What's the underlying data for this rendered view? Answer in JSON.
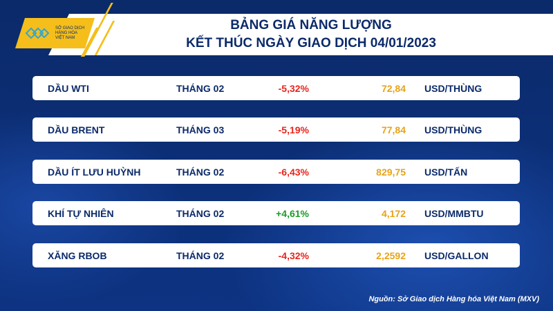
{
  "logo": {
    "text": [
      "SỞ GIAO DỊCH",
      "HÀNG HÓA",
      "VIỆT NAM"
    ]
  },
  "header": {
    "title_line1": "BẢNG GIÁ NĂNG LƯỢNG",
    "title_line2": "KẾT THÚC NGÀY GIAO DỊCH 04/01/2023"
  },
  "rows": [
    {
      "name": "DẦU WTI",
      "month": "THÁNG 02",
      "change": "-5,32%",
      "price": "72,84",
      "unit": "USD/THÙNG",
      "dir": "neg"
    },
    {
      "name": "DẦU BRENT",
      "month": "THÁNG 03",
      "change": "-5,19%",
      "price": "77,84",
      "unit": "USD/THÙNG",
      "dir": "neg"
    },
    {
      "name": "DẦU ÍT LƯU HUỲNH",
      "month": "THÁNG 02",
      "change": "-6,43%",
      "price": "829,75",
      "unit": "USD/TẤN",
      "dir": "neg"
    },
    {
      "name": "KHÍ TỰ NHIÊN",
      "month": "THÁNG 02",
      "change": "+4,61%",
      "price": "4,172",
      "unit": "USD/MMBTU",
      "dir": "pos"
    },
    {
      "name": "XĂNG RBOB",
      "month": "THÁNG 02",
      "change": "-4,32%",
      "price": "2,2592",
      "unit": "USD/GALLON",
      "dir": "neg"
    }
  ],
  "source": "Nguồn: Sở Giao dịch Hàng hóa Việt Nam (MXV)",
  "colors": {
    "navy": "#0b2a6a",
    "accent": "#f5be1a",
    "negative": "#e8241c",
    "positive": "#1e9a2a",
    "price": "#e8a317"
  }
}
